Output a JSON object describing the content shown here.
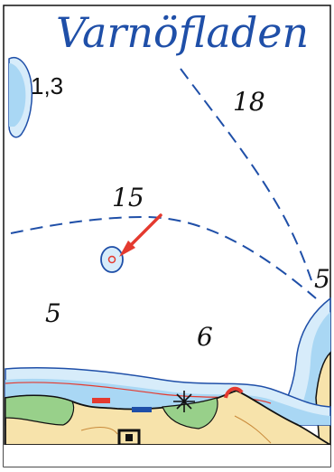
{
  "map": {
    "title": "Varnöfladen",
    "labels": {
      "sounding_top_left": "1,3",
      "depth_18": "18",
      "depth_15": "15",
      "depth_5_left": "5",
      "depth_6": "6",
      "depth_5_right": "5"
    },
    "colors": {
      "water_shallow": "#a9d7f4",
      "water_light": "#d7ecfa",
      "land": "#f7e3ab",
      "vegetation": "#98d08a",
      "contour": "#1f4fa8",
      "arrow": "#e43a2f",
      "shoal_edge": "#e43a2f",
      "title": "#1f4fa8"
    }
  }
}
